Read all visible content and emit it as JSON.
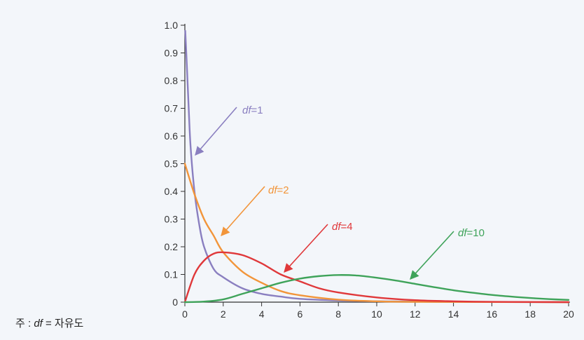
{
  "chart_data": {
    "type": "line",
    "title": "",
    "xlabel": "",
    "ylabel": "",
    "xlim": [
      0,
      20
    ],
    "ylim": [
      0,
      1.0
    ],
    "x_ticks": [
      "0",
      "2",
      "4",
      "6",
      "8",
      "10",
      "12",
      "14",
      "16",
      "18",
      "20"
    ],
    "y_ticks": [
      "0",
      "0.1",
      "0.2",
      "0.3",
      "0.4",
      "0.5",
      "0.6",
      "0.7",
      "0.8",
      "0.9",
      "1.0"
    ],
    "grid": false,
    "series": [
      {
        "name": "df=1",
        "label_prefix": "df",
        "label_suffix": "=1",
        "color": "#8a7fc0",
        "points": [
          [
            0.02,
            0.98
          ],
          [
            0.1,
            0.86
          ],
          [
            0.2,
            0.7
          ],
          [
            0.3,
            0.56
          ],
          [
            0.5,
            0.4
          ],
          [
            0.75,
            0.28
          ],
          [
            1,
            0.2
          ],
          [
            1.5,
            0.12
          ],
          [
            2,
            0.09
          ],
          [
            3,
            0.05
          ],
          [
            4,
            0.03
          ],
          [
            5,
            0.02
          ],
          [
            6,
            0.012
          ],
          [
            8,
            0.006
          ],
          [
            10,
            0.003
          ],
          [
            14,
            0.001
          ],
          [
            20,
            0.0
          ]
        ]
      },
      {
        "name": "df=2",
        "label_prefix": "df",
        "label_suffix": "=2",
        "color": "#f2953a",
        "points": [
          [
            0,
            0.5
          ],
          [
            0.5,
            0.39
          ],
          [
            1,
            0.3
          ],
          [
            1.5,
            0.24
          ],
          [
            2,
            0.18
          ],
          [
            3,
            0.11
          ],
          [
            4,
            0.07
          ],
          [
            5,
            0.04
          ],
          [
            6,
            0.025
          ],
          [
            8,
            0.009
          ],
          [
            10,
            0.003
          ],
          [
            12,
            0.001
          ],
          [
            20,
            0.0
          ]
        ]
      },
      {
        "name": "df=4",
        "label_prefix": "df",
        "label_suffix": "=4",
        "color": "#e0383a",
        "points": [
          [
            0,
            0
          ],
          [
            0.5,
            0.1
          ],
          [
            1,
            0.15
          ],
          [
            1.5,
            0.175
          ],
          [
            2,
            0.18
          ],
          [
            3,
            0.17
          ],
          [
            4,
            0.14
          ],
          [
            5,
            0.1
          ],
          [
            6,
            0.075
          ],
          [
            7,
            0.05
          ],
          [
            8,
            0.035
          ],
          [
            10,
            0.017
          ],
          [
            12,
            0.007
          ],
          [
            14,
            0.003
          ],
          [
            16,
            0.001
          ],
          [
            20,
            0.0
          ]
        ]
      },
      {
        "name": "df=10",
        "label_prefix": "df",
        "label_suffix": "=10",
        "color": "#3fa35a",
        "points": [
          [
            0,
            0
          ],
          [
            1,
            0.002
          ],
          [
            2,
            0.01
          ],
          [
            3,
            0.03
          ],
          [
            4,
            0.05
          ],
          [
            5,
            0.07
          ],
          [
            6,
            0.085
          ],
          [
            7,
            0.094
          ],
          [
            8,
            0.098
          ],
          [
            9,
            0.096
          ],
          [
            10,
            0.088
          ],
          [
            11,
            0.078
          ],
          [
            12,
            0.066
          ],
          [
            13,
            0.054
          ],
          [
            14,
            0.043
          ],
          [
            15,
            0.034
          ],
          [
            16,
            0.026
          ],
          [
            17,
            0.02
          ],
          [
            18,
            0.015
          ],
          [
            19,
            0.011
          ],
          [
            20,
            0.008
          ]
        ]
      }
    ]
  },
  "note": {
    "prefix": "주 : ",
    "italic": "df",
    "suffix": " = 자유도"
  }
}
